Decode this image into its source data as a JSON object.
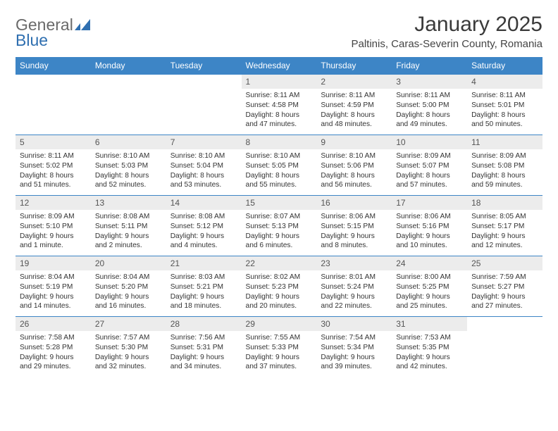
{
  "brand": {
    "part1": "General",
    "part2": "Blue"
  },
  "title": "January 2025",
  "subtitle": "Paltinis, Caras-Severin County, Romania",
  "colors": {
    "header_bg": "#3d85c6",
    "header_text": "#ffffff",
    "daynum_bg": "#ececec",
    "border": "#3d85c6",
    "page_bg": "#ffffff",
    "text": "#333333",
    "logo_gray": "#6a6a6a",
    "logo_blue": "#2f6fb0"
  },
  "weekdays": [
    "Sunday",
    "Monday",
    "Tuesday",
    "Wednesday",
    "Thursday",
    "Friday",
    "Saturday"
  ],
  "rows": [
    [
      null,
      null,
      null,
      {
        "n": "1",
        "sunrise": "8:11 AM",
        "sunset": "4:58 PM",
        "daylight": "8 hours and 47 minutes."
      },
      {
        "n": "2",
        "sunrise": "8:11 AM",
        "sunset": "4:59 PM",
        "daylight": "8 hours and 48 minutes."
      },
      {
        "n": "3",
        "sunrise": "8:11 AM",
        "sunset": "5:00 PM",
        "daylight": "8 hours and 49 minutes."
      },
      {
        "n": "4",
        "sunrise": "8:11 AM",
        "sunset": "5:01 PM",
        "daylight": "8 hours and 50 minutes."
      }
    ],
    [
      {
        "n": "5",
        "sunrise": "8:11 AM",
        "sunset": "5:02 PM",
        "daylight": "8 hours and 51 minutes."
      },
      {
        "n": "6",
        "sunrise": "8:10 AM",
        "sunset": "5:03 PM",
        "daylight": "8 hours and 52 minutes."
      },
      {
        "n": "7",
        "sunrise": "8:10 AM",
        "sunset": "5:04 PM",
        "daylight": "8 hours and 53 minutes."
      },
      {
        "n": "8",
        "sunrise": "8:10 AM",
        "sunset": "5:05 PM",
        "daylight": "8 hours and 55 minutes."
      },
      {
        "n": "9",
        "sunrise": "8:10 AM",
        "sunset": "5:06 PM",
        "daylight": "8 hours and 56 minutes."
      },
      {
        "n": "10",
        "sunrise": "8:09 AM",
        "sunset": "5:07 PM",
        "daylight": "8 hours and 57 minutes."
      },
      {
        "n": "11",
        "sunrise": "8:09 AM",
        "sunset": "5:08 PM",
        "daylight": "8 hours and 59 minutes."
      }
    ],
    [
      {
        "n": "12",
        "sunrise": "8:09 AM",
        "sunset": "5:10 PM",
        "daylight": "9 hours and 1 minute."
      },
      {
        "n": "13",
        "sunrise": "8:08 AM",
        "sunset": "5:11 PM",
        "daylight": "9 hours and 2 minutes."
      },
      {
        "n": "14",
        "sunrise": "8:08 AM",
        "sunset": "5:12 PM",
        "daylight": "9 hours and 4 minutes."
      },
      {
        "n": "15",
        "sunrise": "8:07 AM",
        "sunset": "5:13 PM",
        "daylight": "9 hours and 6 minutes."
      },
      {
        "n": "16",
        "sunrise": "8:06 AM",
        "sunset": "5:15 PM",
        "daylight": "9 hours and 8 minutes."
      },
      {
        "n": "17",
        "sunrise": "8:06 AM",
        "sunset": "5:16 PM",
        "daylight": "9 hours and 10 minutes."
      },
      {
        "n": "18",
        "sunrise": "8:05 AM",
        "sunset": "5:17 PM",
        "daylight": "9 hours and 12 minutes."
      }
    ],
    [
      {
        "n": "19",
        "sunrise": "8:04 AM",
        "sunset": "5:19 PM",
        "daylight": "9 hours and 14 minutes."
      },
      {
        "n": "20",
        "sunrise": "8:04 AM",
        "sunset": "5:20 PM",
        "daylight": "9 hours and 16 minutes."
      },
      {
        "n": "21",
        "sunrise": "8:03 AM",
        "sunset": "5:21 PM",
        "daylight": "9 hours and 18 minutes."
      },
      {
        "n": "22",
        "sunrise": "8:02 AM",
        "sunset": "5:23 PM",
        "daylight": "9 hours and 20 minutes."
      },
      {
        "n": "23",
        "sunrise": "8:01 AM",
        "sunset": "5:24 PM",
        "daylight": "9 hours and 22 minutes."
      },
      {
        "n": "24",
        "sunrise": "8:00 AM",
        "sunset": "5:25 PM",
        "daylight": "9 hours and 25 minutes."
      },
      {
        "n": "25",
        "sunrise": "7:59 AM",
        "sunset": "5:27 PM",
        "daylight": "9 hours and 27 minutes."
      }
    ],
    [
      {
        "n": "26",
        "sunrise": "7:58 AM",
        "sunset": "5:28 PM",
        "daylight": "9 hours and 29 minutes."
      },
      {
        "n": "27",
        "sunrise": "7:57 AM",
        "sunset": "5:30 PM",
        "daylight": "9 hours and 32 minutes."
      },
      {
        "n": "28",
        "sunrise": "7:56 AM",
        "sunset": "5:31 PM",
        "daylight": "9 hours and 34 minutes."
      },
      {
        "n": "29",
        "sunrise": "7:55 AM",
        "sunset": "5:33 PM",
        "daylight": "9 hours and 37 minutes."
      },
      {
        "n": "30",
        "sunrise": "7:54 AM",
        "sunset": "5:34 PM",
        "daylight": "9 hours and 39 minutes."
      },
      {
        "n": "31",
        "sunrise": "7:53 AM",
        "sunset": "5:35 PM",
        "daylight": "9 hours and 42 minutes."
      },
      null
    ]
  ],
  "labels": {
    "sunrise": "Sunrise:",
    "sunset": "Sunset:",
    "daylight": "Daylight:"
  }
}
